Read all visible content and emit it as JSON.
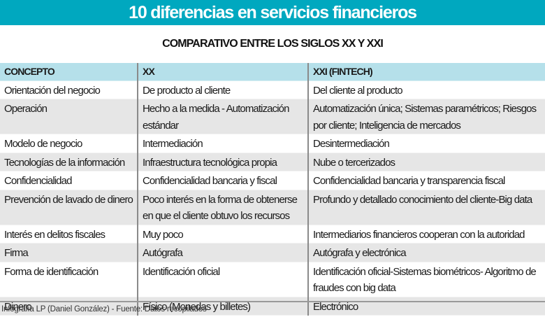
{
  "header": {
    "title": "10 diferencias en servicios financieros",
    "subtitle": "COMPARATIVO ENTRE LOS SIGLOS XX Y XXI"
  },
  "table": {
    "columns": [
      "CONCEPTO",
      "XX",
      "XXI (FINTECH)"
    ],
    "rows": [
      {
        "concepto": "Orientación del negocio",
        "xx": "De producto al cliente",
        "xxi": "Del cliente al producto"
      },
      {
        "concepto": "Operación",
        "xx": "Hecho a la medida - Automatización estándar",
        "xxi": "Automatización única; Sistemas paramétricos; Riesgos por cliente; Inteligencia de mercados"
      },
      {
        "concepto": "Modelo de negocio",
        "xx": "Intermediación",
        "xxi": "Desintermediación"
      },
      {
        "concepto": "Tecnologías de la información",
        "xx": "Infraestructura tecnológica propia",
        "xxi": "Nube o tercerizados"
      },
      {
        "concepto": "Confidencialidad",
        "xx": "Confidencialidad bancaria y fiscal",
        "xxi": "Confidencialidad bancaria y transparencia fiscal"
      },
      {
        "concepto": "Prevención de lavado de dinero",
        "xx": "Poco interés en la forma de obtenerse en que el cliente obtuvo los recursos",
        "xxi": "Profundo y detallado conocimiento del cliente-Big data"
      },
      {
        "concepto": "Interés en delitos fiscales",
        "xx": "Muy poco",
        "xxi": "Intermediarios financieros cooperan con la autoridad"
      },
      {
        "concepto": "Firma",
        "xx": "Autógrafa",
        "xxi": "Autógrafa y electrónica"
      },
      {
        "concepto": "Forma de identificación",
        "xx": "Identificación oficial",
        "xxi": "Identificación oficial-Sistemas biométricos- Algoritmo de fraudes con big data"
      },
      {
        "concepto": "Dinero",
        "xx": "Físico (Monedas y billetes)",
        "xxi": "Electrónico"
      }
    ]
  },
  "footer": {
    "credit": "Infografía LP (Daniel González) - Fuente: Datos recopilados"
  },
  "colors": {
    "title_bar": "#00a8bf",
    "header_row": "#b5e0ea",
    "row_alt": "#e6e6e6"
  }
}
